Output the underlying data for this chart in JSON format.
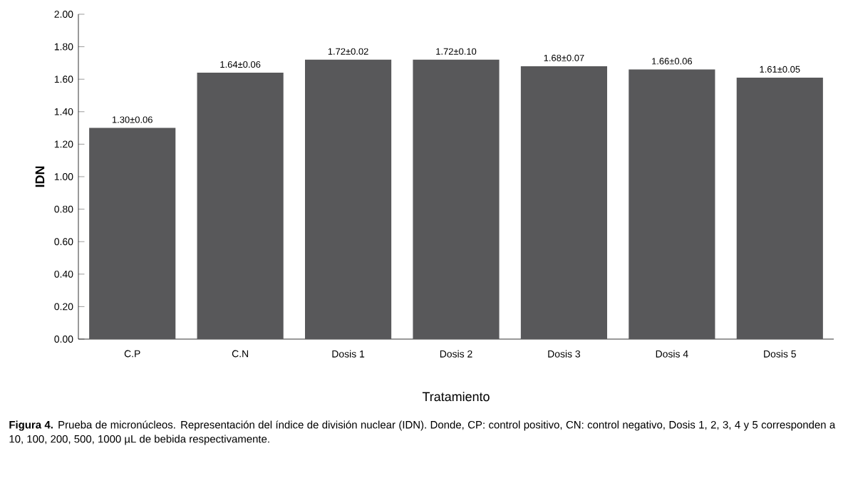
{
  "chart_data": {
    "type": "bar",
    "xlabel": "Tratamiento",
    "ylabel": "IDN",
    "categories": [
      "C.P",
      "C.N",
      "Dosis 1",
      "Dosis 2",
      "Dosis 3",
      "Dosis 4",
      "Dosis 5"
    ],
    "values": [
      1.3,
      1.64,
      1.72,
      1.72,
      1.68,
      1.66,
      1.61
    ],
    "value_labels": [
      "1.30±0.06",
      "1.64±0.06",
      "1.72±0.02",
      "1.72±0.10",
      "1.68±0.07",
      "1.66±0.06",
      "1.61±0.05"
    ],
    "color": "#58585a",
    "ylim": [
      0,
      2
    ],
    "yticks": [
      {
        "value": 0,
        "label": "0.00"
      },
      {
        "value": 0.2,
        "label": "0.20"
      },
      {
        "value": 0.4,
        "label": "0.40"
      },
      {
        "value": 0.6,
        "label": "0.60"
      },
      {
        "value": 0.8,
        "label": "0.80"
      },
      {
        "value": 1.0,
        "label": "1.00"
      },
      {
        "value": 1.2,
        "label": "1.20"
      },
      {
        "value": 1.4,
        "label": "1.40"
      },
      {
        "value": 1.6,
        "label": "1.60"
      },
      {
        "value": 1.8,
        "label": "1.80"
      },
      {
        "value": 2.0,
        "label": "2.00"
      }
    ],
    "annotations": [
      "**Figura 4.** Prueba de micronúcleos. Representación del índice de división nuclear (IDN). Donde, CP: control positivo, CN: control negativo, Dosis 1, 2, 3, 4 y 5 corresponden a 10, 100, 200, 500, 1000 µL de bebida respectivamente."
    ]
  }
}
